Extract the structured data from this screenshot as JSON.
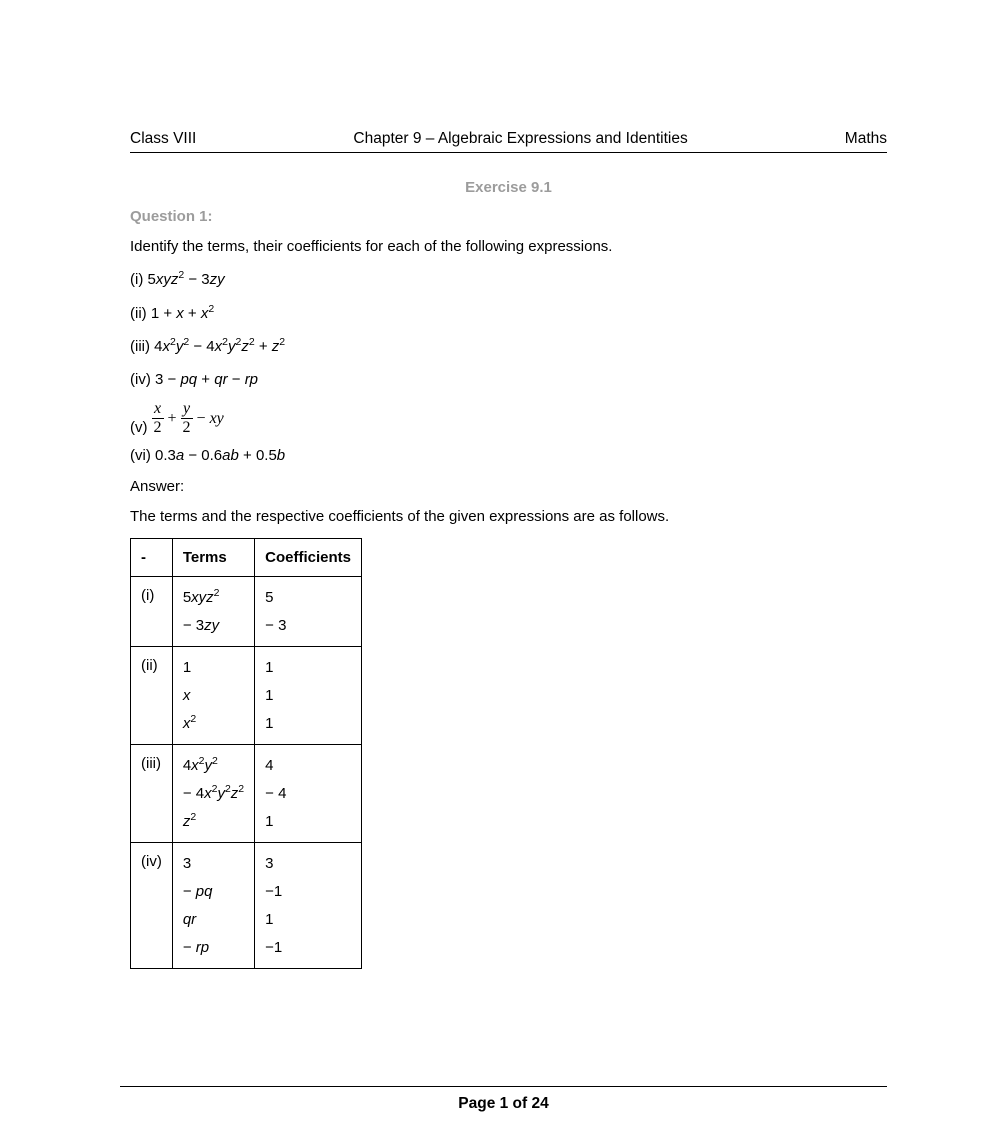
{
  "header": {
    "left": "Class VIII",
    "center": "Chapter 9 – Algebraic Expressions and Identities",
    "right": "Maths"
  },
  "exercise_title": "Exercise 9.1",
  "question_label": "Question 1:",
  "prompt": "Identify the terms, their coefficients for each of the following expressions.",
  "items": {
    "i_label": "(i) ",
    "ii_label": "(ii) ",
    "iii_label": "(iii) ",
    "iv_label": "(iv) ",
    "v_label": "(v) ",
    "vi_label": "(vi) "
  },
  "exprs": {
    "i_pre": "5",
    "i_v1": "xyz",
    "i_mid": " − 3",
    "i_v2": "zy",
    "ii_pre": "1 + ",
    "ii_v1": "x",
    "ii_mid": " + ",
    "ii_v2": "x",
    "iii_a": "4",
    "iii_v1": "x",
    "iii_v2": "y",
    "iii_b": " − 4",
    "iii_v3": "x",
    "iii_v4": "y",
    "iii_v5": "z",
    "iii_c": " + ",
    "iii_v6": "z",
    "iv_pre": "3 − ",
    "iv_v1": "pq",
    "iv_mid1": " + ",
    "iv_v2": "qr",
    "iv_mid2": " − ",
    "iv_v3": "rp",
    "v_num1": "x",
    "v_den1": "2",
    "v_plus": "+",
    "v_num2": "y",
    "v_den2": "2",
    "v_minus": "−",
    "v_xy": "xy",
    "vi_a": "0.3",
    "vi_v1": "a",
    "vi_b": " − 0.6",
    "vi_v2": "ab",
    "vi_c": " + 0.5",
    "vi_v3": "b"
  },
  "sup2": "2",
  "answer_label": "Answer:",
  "answer_intro": "The terms and the respective coefficients of the given expressions are as follows.",
  "table": {
    "h1": "-",
    "h2": "Terms",
    "h3": "Coefficients",
    "r1_c1": "(i)",
    "r1_t1a": "5",
    "r1_t1b": "xyz",
    "r1_t2a": "− 3",
    "r1_t2b": "zy",
    "r1_co1": "5",
    "r1_co2": "− 3",
    "r2_c1": "(ii)",
    "r2_t1": "1",
    "r2_t2": "x",
    "r2_t3": "x",
    "r2_co1": "1",
    "r2_co2": "1",
    "r2_co3": "1",
    "r3_c1": "(iii)",
    "r3_t1a": "4",
    "r3_t1x": "x",
    "r3_t1y": "y",
    "r3_t2a": "− 4",
    "r3_t2x": "x",
    "r3_t2y": "y",
    "r3_t2z": "z",
    "r3_t3z": "z",
    "r3_co1": "4",
    "r3_co2": "− 4",
    "r3_co3": "1",
    "r4_c1": "(iv)",
    "r4_t1": "3",
    "r4_t2a": "− ",
    "r4_t2b": "pq",
    "r4_t3": "qr",
    "r4_t4a": "− ",
    "r4_t4b": "rp",
    "r4_co1": "3",
    "r4_co2": "−1",
    "r4_co3": "1",
    "r4_co4": "−1"
  },
  "footer": "Page 1 of 24"
}
